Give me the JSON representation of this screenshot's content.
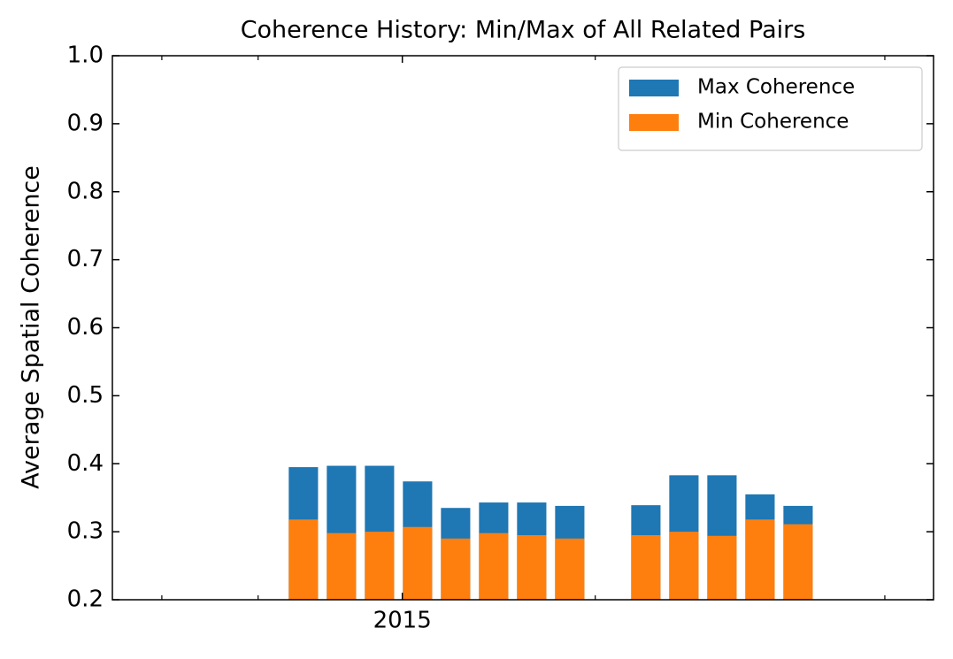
{
  "chart_data": {
    "type": "bar",
    "title": "Coherence History: Min/Max of All Related Pairs",
    "y_label": "Average Spatial Coherence",
    "x": [
      0,
      1,
      2,
      3,
      4,
      5,
      6,
      7,
      9,
      10,
      11,
      12,
      13
    ],
    "series": [
      {
        "name": "Max Coherence",
        "color": "#1f77b4",
        "values": [
          0.395,
          0.397,
          0.397,
          0.374,
          0.335,
          0.343,
          0.343,
          0.338,
          0.339,
          0.383,
          0.383,
          0.355,
          0.338
        ]
      },
      {
        "name": "Min Coherence",
        "color": "#ff7f0e",
        "values": [
          0.318,
          0.298,
          0.3,
          0.307,
          0.29,
          0.298,
          0.295,
          0.29,
          0.295,
          0.3,
          0.294,
          0.318,
          0.311
        ]
      }
    ],
    "xlim": [
      -5.02,
      16.56
    ],
    "xticks": [
      {
        "value": 2.6,
        "label": "2015"
      }
    ],
    "xminorticks": [
      -3.72,
      -1.19,
      7.67,
      15.28
    ],
    "ylim": [
      0.2,
      1.0
    ],
    "yticks": [
      0.2,
      0.3,
      0.4,
      0.5,
      0.6,
      0.7,
      0.8,
      0.9,
      {
        "value": 1.0,
        "label": "1.0"
      }
    ],
    "legend": "upper right"
  }
}
